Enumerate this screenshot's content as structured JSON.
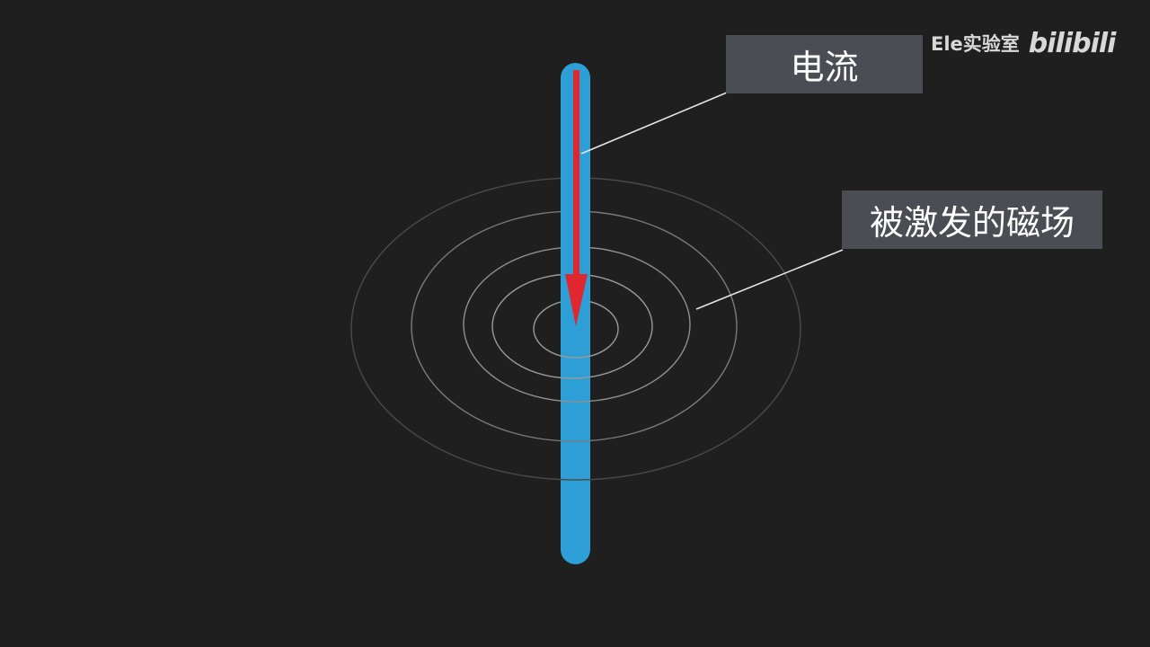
{
  "labels": {
    "current": "电流",
    "magnetic_field": "被激发的磁场"
  },
  "watermark": {
    "channel": "Ele实验室",
    "platform_logo": "bilibili"
  },
  "colors": {
    "background": "#1f1f1f",
    "wire": "#2e9fd6",
    "current_arrow": "#e0262e",
    "field_lines": "#9a9a9a",
    "label_box": "#4a4d53",
    "label_text": "#ffffff",
    "leader_line": "#e6e6e6"
  },
  "icons": {
    "current_direction": "down-arrow-icon"
  }
}
